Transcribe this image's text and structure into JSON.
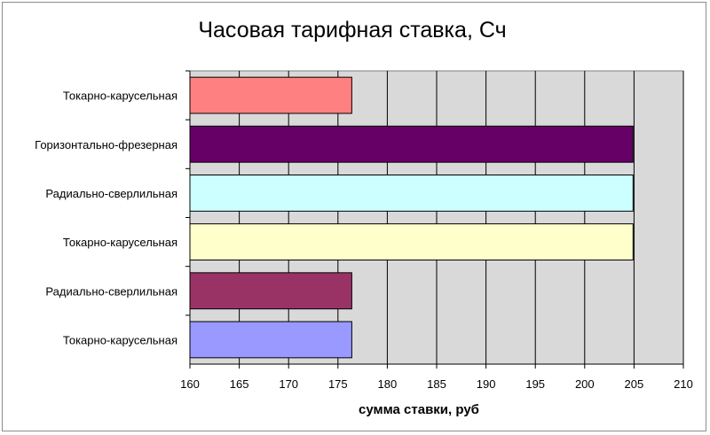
{
  "chart_data": {
    "type": "bar",
    "orientation": "horizontal",
    "title": "Часовая тарифная ставка, Сч",
    "xlabel": "сумма ставки, руб",
    "ylabel": "",
    "xlim": [
      160,
      210
    ],
    "x_ticks": [
      "160",
      "165",
      "170",
      "175",
      "180",
      "185",
      "190",
      "195",
      "200",
      "205",
      "210"
    ],
    "grid": "vertical",
    "legend": "none",
    "plot_background": "#d9d9d9",
    "categories": [
      "Токарно-карусельная",
      "Горизонтально-фрезерная",
      "Радиально-сверлильная",
      "Токарно-карусельная",
      "Радиально-сверлильная",
      "Токарно-карусельная"
    ],
    "values": [
      176.4,
      204.9,
      204.9,
      204.9,
      176.4,
      176.4
    ],
    "colors": [
      "#ff8080",
      "#660066",
      "#ccffff",
      "#ffffcc",
      "#993366",
      "#9999ff"
    ]
  }
}
